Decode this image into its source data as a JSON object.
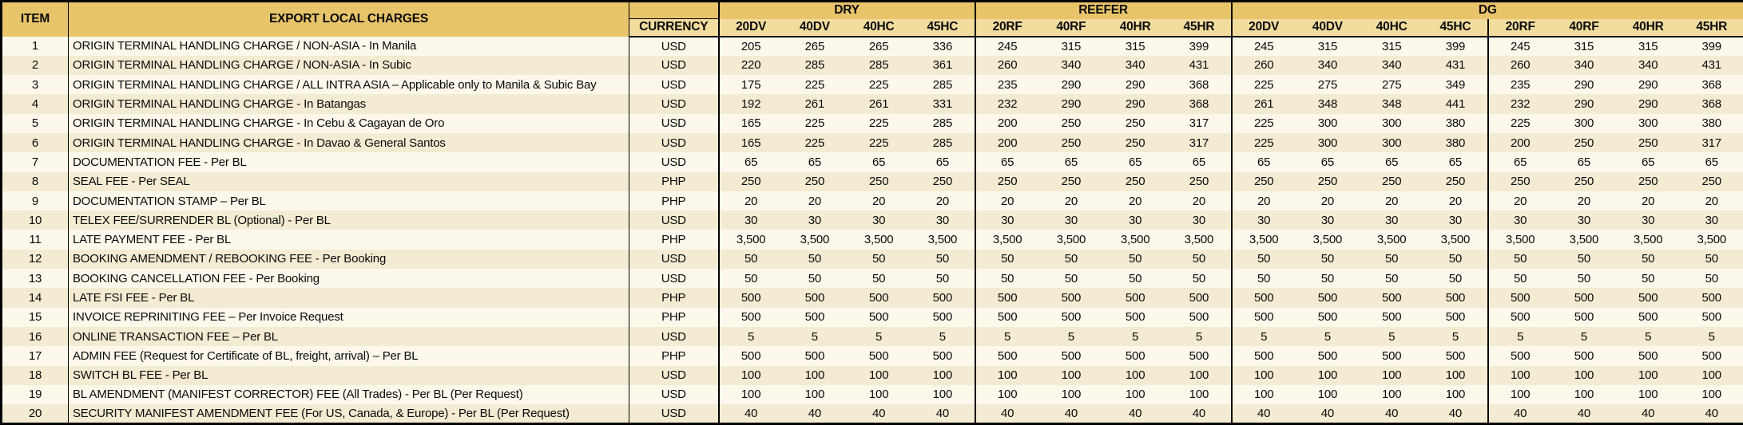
{
  "colors": {
    "header_gold": "#e8c46a",
    "subheader_gold": "#f3dd9e",
    "row_odd_cream": "#fcf8ec",
    "row_even_tan": "#f3ecd2",
    "border_black": "#000000"
  },
  "table": {
    "item_header": "ITEM",
    "charges_header": "EXPORT LOCAL CHARGES",
    "currency_header": "CURRENCY",
    "groups": [
      {
        "label": "DRY",
        "cols": [
          "20DV",
          "40DV",
          "40HC",
          "45HC"
        ]
      },
      {
        "label": "REEFER",
        "cols": [
          "20RF",
          "40RF",
          "40HR",
          "45HR"
        ]
      },
      {
        "label": "DG",
        "cols": [
          "20DV",
          "40DV",
          "40HC",
          "45HC",
          "20RF",
          "40RF",
          "40HR",
          "45HR"
        ]
      }
    ],
    "rows": [
      {
        "item": "1",
        "description": "ORIGIN TERMINAL HANDLING CHARGE / NON-ASIA - In Manila",
        "currency": "USD",
        "values": [
          "205",
          "265",
          "265",
          "336",
          "245",
          "315",
          "315",
          "399",
          "245",
          "315",
          "315",
          "399",
          "245",
          "315",
          "315",
          "399"
        ]
      },
      {
        "item": "2",
        "description": "ORIGIN TERMINAL HANDLING CHARGE / NON-ASIA - In Subic",
        "currency": "USD",
        "values": [
          "220",
          "285",
          "285",
          "361",
          "260",
          "340",
          "340",
          "431",
          "260",
          "340",
          "340",
          "431",
          "260",
          "340",
          "340",
          "431"
        ]
      },
      {
        "item": "3",
        "description": "ORIGIN TERMINAL HANDLING CHARGE / ALL INTRA ASIA – Applicable only to Manila & Subic Bay",
        "currency": "USD",
        "values": [
          "175",
          "225",
          "225",
          "285",
          "235",
          "290",
          "290",
          "368",
          "225",
          "275",
          "275",
          "349",
          "235",
          "290",
          "290",
          "368"
        ]
      },
      {
        "item": "4",
        "description": "ORIGIN TERMINAL HANDLING CHARGE - In Batangas",
        "currency": "USD",
        "values": [
          "192",
          "261",
          "261",
          "331",
          "232",
          "290",
          "290",
          "368",
          "261",
          "348",
          "348",
          "441",
          "232",
          "290",
          "290",
          "368"
        ]
      },
      {
        "item": "5",
        "description": "ORIGIN TERMINAL HANDLING CHARGE - In Cebu & Cagayan de Oro",
        "currency": "USD",
        "values": [
          "165",
          "225",
          "225",
          "285",
          "200",
          "250",
          "250",
          "317",
          "225",
          "300",
          "300",
          "380",
          "225",
          "300",
          "300",
          "380"
        ]
      },
      {
        "item": "6",
        "description": "ORIGIN TERMINAL HANDLING CHARGE - In Davao & General Santos",
        "currency": "USD",
        "values": [
          "165",
          "225",
          "225",
          "285",
          "200",
          "250",
          "250",
          "317",
          "225",
          "300",
          "300",
          "380",
          "200",
          "250",
          "250",
          "317"
        ]
      },
      {
        "item": "7",
        "description": "DOCUMENTATION FEE - Per BL",
        "currency": "USD",
        "values": [
          "65",
          "65",
          "65",
          "65",
          "65",
          "65",
          "65",
          "65",
          "65",
          "65",
          "65",
          "65",
          "65",
          "65",
          "65",
          "65"
        ]
      },
      {
        "item": "8",
        "description": "SEAL FEE - Per SEAL",
        "currency": "PHP",
        "values": [
          "250",
          "250",
          "250",
          "250",
          "250",
          "250",
          "250",
          "250",
          "250",
          "250",
          "250",
          "250",
          "250",
          "250",
          "250",
          "250"
        ]
      },
      {
        "item": "9",
        "description": "DOCUMENTATION STAMP – Per BL",
        "currency": "PHP",
        "values": [
          "20",
          "20",
          "20",
          "20",
          "20",
          "20",
          "20",
          "20",
          "20",
          "20",
          "20",
          "20",
          "20",
          "20",
          "20",
          "20"
        ]
      },
      {
        "item": "10",
        "description": "TELEX FEE/SURRENDER BL (Optional) - Per BL",
        "currency": "USD",
        "values": [
          "30",
          "30",
          "30",
          "30",
          "30",
          "30",
          "30",
          "30",
          "30",
          "30",
          "30",
          "30",
          "30",
          "30",
          "30",
          "30"
        ]
      },
      {
        "item": "11",
        "description": "LATE PAYMENT FEE - Per BL",
        "currency": "PHP",
        "values": [
          "3,500",
          "3,500",
          "3,500",
          "3,500",
          "3,500",
          "3,500",
          "3,500",
          "3,500",
          "3,500",
          "3,500",
          "3,500",
          "3,500",
          "3,500",
          "3,500",
          "3,500",
          "3,500"
        ]
      },
      {
        "item": "12",
        "description": "BOOKING AMENDMENT / REBOOKING FEE - Per Booking",
        "currency": "USD",
        "values": [
          "50",
          "50",
          "50",
          "50",
          "50",
          "50",
          "50",
          "50",
          "50",
          "50",
          "50",
          "50",
          "50",
          "50",
          "50",
          "50"
        ]
      },
      {
        "item": "13",
        "description": "BOOKING CANCELLATION FEE - Per Booking",
        "currency": "USD",
        "values": [
          "50",
          "50",
          "50",
          "50",
          "50",
          "50",
          "50",
          "50",
          "50",
          "50",
          "50",
          "50",
          "50",
          "50",
          "50",
          "50"
        ]
      },
      {
        "item": "14",
        "description": "LATE FSI FEE - Per BL",
        "currency": "PHP",
        "values": [
          "500",
          "500",
          "500",
          "500",
          "500",
          "500",
          "500",
          "500",
          "500",
          "500",
          "500",
          "500",
          "500",
          "500",
          "500",
          "500"
        ]
      },
      {
        "item": "15",
        "description": "INVOICE REPRINITING FEE – Per Invoice Request",
        "currency": "PHP",
        "values": [
          "500",
          "500",
          "500",
          "500",
          "500",
          "500",
          "500",
          "500",
          "500",
          "500",
          "500",
          "500",
          "500",
          "500",
          "500",
          "500"
        ]
      },
      {
        "item": "16",
        "description": "ONLINE TRANSACTION FEE – Per BL",
        "currency": "USD",
        "values": [
          "5",
          "5",
          "5",
          "5",
          "5",
          "5",
          "5",
          "5",
          "5",
          "5",
          "5",
          "5",
          "5",
          "5",
          "5",
          "5"
        ]
      },
      {
        "item": "17",
        "description": "ADMIN FEE (Request for Certificate of BL, freight, arrival) – Per BL",
        "currency": "PHP",
        "values": [
          "500",
          "500",
          "500",
          "500",
          "500",
          "500",
          "500",
          "500",
          "500",
          "500",
          "500",
          "500",
          "500",
          "500",
          "500",
          "500"
        ]
      },
      {
        "item": "18",
        "description": "SWITCH BL FEE - Per BL",
        "currency": "USD",
        "values": [
          "100",
          "100",
          "100",
          "100",
          "100",
          "100",
          "100",
          "100",
          "100",
          "100",
          "100",
          "100",
          "100",
          "100",
          "100",
          "100"
        ]
      },
      {
        "item": "19",
        "description": "BL AMENDMENT (MANIFEST CORRECTOR) FEE (All Trades) - Per BL (Per Request)",
        "currency": "USD",
        "values": [
          "100",
          "100",
          "100",
          "100",
          "100",
          "100",
          "100",
          "100",
          "100",
          "100",
          "100",
          "100",
          "100",
          "100",
          "100",
          "100"
        ]
      },
      {
        "item": "20",
        "description": "SECURITY MANIFEST AMENDMENT FEE (For US, Canada, & Europe) - Per BL (Per Request)",
        "currency": "USD",
        "values": [
          "40",
          "40",
          "40",
          "40",
          "40",
          "40",
          "40",
          "40",
          "40",
          "40",
          "40",
          "40",
          "40",
          "40",
          "40",
          "40"
        ]
      }
    ]
  }
}
